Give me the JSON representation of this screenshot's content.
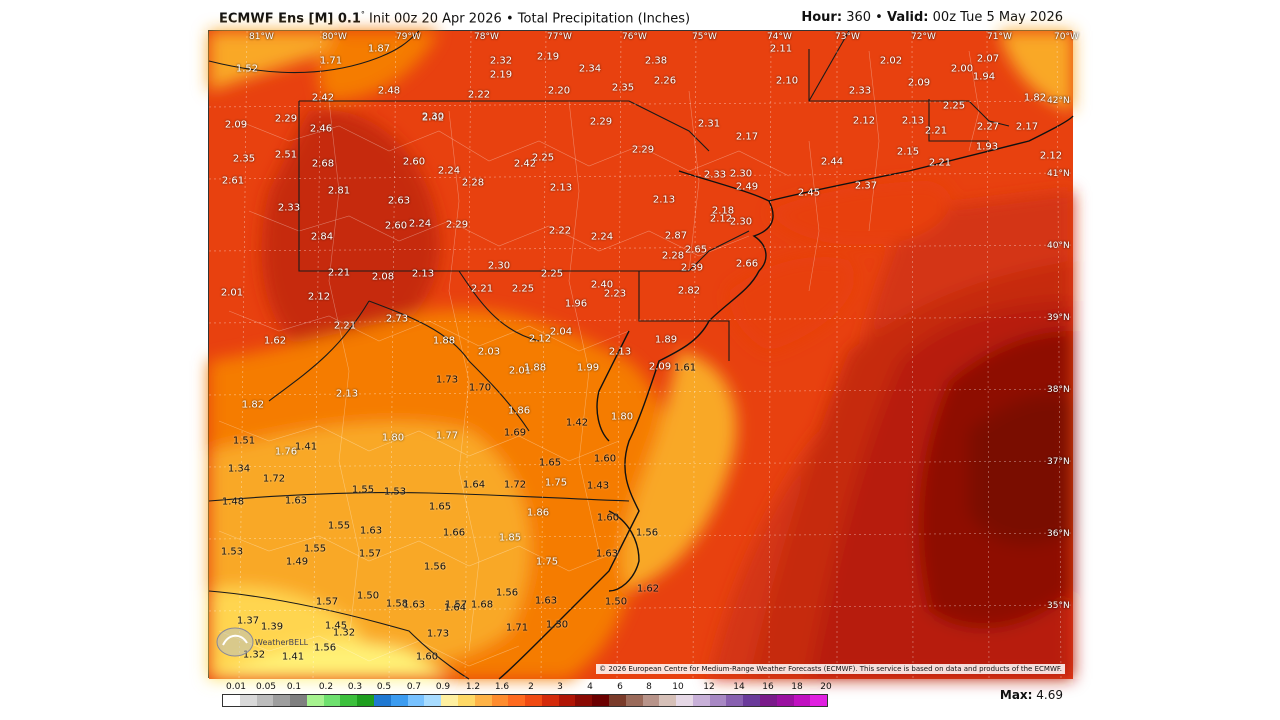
{
  "header": {
    "model": "ECMWF Ens [M] 0.1",
    "degree": "°",
    "init": "Init 00z 20 Apr 2026",
    "bullet": "•",
    "product": "Total Precipitation (Inches)",
    "hour_label": "Hour:",
    "hour_value": "360",
    "valid_label": "Valid:",
    "valid_value": "00z Tue 5 May 2026"
  },
  "longitudes": [
    "81°W",
    "80°W",
    "79°W",
    "78°W",
    "77°W",
    "76°W",
    "75°W",
    "74°W",
    "73°W",
    "72°W",
    "71°W",
    "70°W"
  ],
  "latitudes": [
    "42°N",
    "41°N",
    "40°N",
    "39°N",
    "38°N",
    "37°N",
    "36°N",
    "35°N"
  ],
  "precip_values": [
    "1.52",
    "1.87",
    "1.71",
    "2.48",
    "2.42",
    "2.32",
    "2.19",
    "2.22",
    "2.19",
    "2.34",
    "2.20",
    "2.38",
    "2.35",
    "2.26",
    "2.11",
    "2.10",
    "2.02",
    "2.33",
    "2.09",
    "2.00",
    "1.94",
    "2.07",
    "1.82",
    "2.09",
    "2.29",
    "2.46",
    "2.42",
    "2.30",
    "2.29",
    "2.31",
    "2.17",
    "2.12",
    "2.13",
    "2.25",
    "2.21",
    "2.27",
    "2.17",
    "2.35",
    "2.51",
    "2.68",
    "2.60",
    "2.24",
    "2.42",
    "2.25",
    "2.29",
    "2.30",
    "2.44",
    "2.15",
    "2.21",
    "1.93",
    "2.12",
    "2.61",
    "2.81",
    "2.63",
    "2.28",
    "2.13",
    "2.33",
    "2.49",
    "2.45",
    "2.37",
    "2.13",
    "2.18",
    "2.12",
    "2.30",
    "2.33",
    "2.84",
    "2.60",
    "2.24",
    "2.29",
    "2.22",
    "2.24",
    "2.87",
    "2.65",
    "2.21",
    "2.08",
    "2.13",
    "2.30",
    "2.25",
    "2.28",
    "2.39",
    "2.66",
    "2.01",
    "2.12",
    "2.21",
    "2.25",
    "2.40",
    "2.23",
    "2.82",
    "1.96",
    "2.21",
    "2.73",
    "1.62",
    "1.88",
    "2.03",
    "2.12",
    "2.04",
    "2.13",
    "1.89",
    "2.01",
    "1.88",
    "1.99",
    "2.09",
    "1.61",
    "1.73",
    "1.70",
    "2.13",
    "1.82",
    "1.86",
    "1.80",
    "1.51",
    "1.69",
    "1.80",
    "1.77",
    "1.42",
    "1.41",
    "1.76",
    "1.65",
    "1.60",
    "1.34",
    "1.72",
    "1.64",
    "1.72",
    "1.75",
    "1.43",
    "1.55",
    "1.53",
    "1.48",
    "1.63",
    "1.65",
    "1.86",
    "1.60",
    "1.55",
    "1.63",
    "1.66",
    "1.85",
    "1.56",
    "1.53",
    "1.55",
    "1.49",
    "1.57",
    "1.56",
    "1.75",
    "1.63",
    "1.62",
    "1.56",
    "1.57",
    "1.50",
    "1.57",
    "1.58",
    "1.63",
    "1.64",
    "1.68",
    "1.63",
    "1.50",
    "1.37",
    "1.39",
    "1.45",
    "1.32",
    "1.56",
    "1.73",
    "1.71",
    "1.30",
    "1.32",
    "1.41",
    "1.60"
  ],
  "copyright": "© 2026 European Centre for Medium-Range Weather Forecasts (ECMWF). This service is based on data and products of the ECMWF.",
  "logo_text": "WeatherBELL",
  "legend": {
    "ticks": [
      "0.01",
      "0.05",
      "0.1",
      "0.2",
      "0.3",
      "0.5",
      "0.7",
      "0.9",
      "1.2",
      "1.6",
      "2",
      "3",
      "4",
      "6",
      "8",
      "10",
      "12",
      "14",
      "16",
      "18",
      "20"
    ],
    "colors": [
      "#ffffff",
      "#d9d9d9",
      "#bdbdbd",
      "#9e9e9e",
      "#7f7f7f",
      "#a6f28f",
      "#6ee06e",
      "#3cc03c",
      "#1e9e1e",
      "#1f78d1",
      "#3c9cf0",
      "#78c2ff",
      "#a8dcff",
      "#fff0a0",
      "#ffd966",
      "#ffb347",
      "#ff8c2e",
      "#ff6a1f",
      "#f04a12",
      "#d42a0a",
      "#b01505",
      "#8a0a03",
      "#6b0000",
      "#7a3b2a",
      "#9a6a5a",
      "#b8948a",
      "#d6c0b8",
      "#e6d8e6",
      "#c8b0d8",
      "#a888c4",
      "#8860b0",
      "#6a3a9a",
      "#7a1a8a",
      "#9a10a0",
      "#c010c0",
      "#e020e0"
    ],
    "max_label": "Max:",
    "max_value": "4.69"
  }
}
